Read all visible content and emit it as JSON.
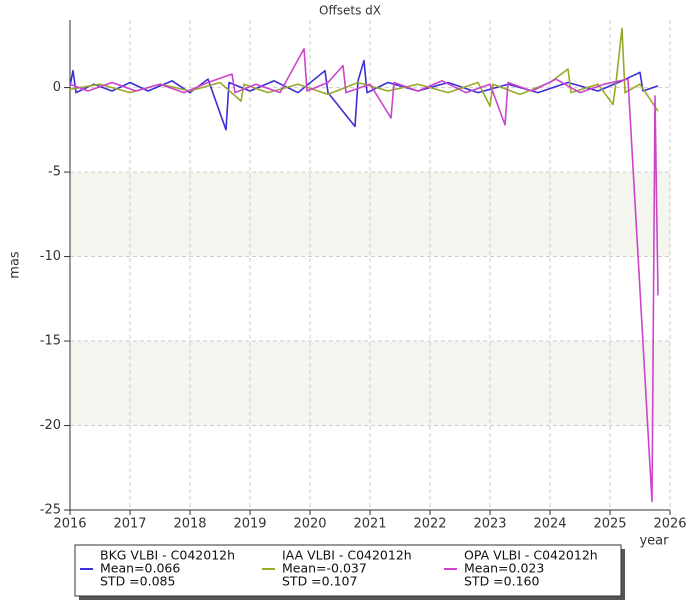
{
  "chart_data": {
    "type": "line",
    "title": "Offsets dX",
    "y_label": "mas",
    "x_label": "year",
    "xlim": [
      2016,
      2026
    ],
    "xticks": [
      2016,
      2017,
      2018,
      2019,
      2020,
      2021,
      2022,
      2023,
      2024,
      2025,
      2026
    ],
    "ylim": [
      -25,
      4
    ],
    "yticks": [
      0,
      -5,
      -10,
      -15,
      -20,
      -25
    ],
    "grid": true,
    "bands": [
      [
        -10,
        -5
      ],
      [
        -20,
        -15
      ]
    ],
    "band_color": "#f5f5f0",
    "series": [
      {
        "name": "BKG VLBI - C042012h",
        "color": "#3a2fd6",
        "stats": [
          "Mean=0.066",
          "STD =0.085"
        ],
        "x": [
          2016.0,
          2016.05,
          2016.1,
          2016.4,
          2016.7,
          2017.0,
          2017.3,
          2017.7,
          2018.0,
          2018.3,
          2018.6,
          2018.65,
          2019.0,
          2019.4,
          2019.8,
          2020.25,
          2020.3,
          2020.75,
          2020.8,
          2020.9,
          2020.95,
          2021.3,
          2021.8,
          2022.3,
          2022.8,
          2023.3,
          2023.8,
          2024.3,
          2024.8,
          2025.2,
          2025.5,
          2025.55,
          2025.8
        ],
        "values": [
          0.1,
          1.0,
          -0.3,
          0.2,
          -0.2,
          0.3,
          -0.2,
          0.4,
          -0.3,
          0.5,
          -2.5,
          0.3,
          -0.2,
          0.4,
          -0.3,
          1.0,
          -0.3,
          -2.3,
          0.4,
          1.6,
          -0.3,
          0.3,
          -0.2,
          0.3,
          -0.3,
          0.2,
          -0.3,
          0.3,
          -0.2,
          0.4,
          0.9,
          -0.2,
          0.1
        ]
      },
      {
        "name": "IAA VLBI - C042012h",
        "color": "#9aa82a",
        "stats": [
          "Mean=-0.037",
          "STD =0.107"
        ],
        "x": [
          2016.0,
          2016.5,
          2017.0,
          2017.5,
          2018.0,
          2018.5,
          2018.85,
          2018.9,
          2019.3,
          2019.8,
          2020.3,
          2020.8,
          2021.3,
          2021.8,
          2022.3,
          2022.8,
          2023.0,
          2023.05,
          2023.5,
          2024.0,
          2024.3,
          2024.35,
          2024.8,
          2025.05,
          2025.1,
          2025.2,
          2025.25,
          2025.5,
          2025.8
        ],
        "values": [
          -0.1,
          0.2,
          -0.3,
          0.2,
          -0.2,
          0.3,
          -0.8,
          0.2,
          -0.3,
          0.2,
          -0.4,
          0.3,
          -0.2,
          0.2,
          -0.3,
          0.3,
          -1.1,
          0.2,
          -0.4,
          0.3,
          1.1,
          -0.3,
          0.2,
          -1.0,
          0.3,
          3.5,
          -0.3,
          0.2,
          -1.4
        ]
      },
      {
        "name": "OPA VLBI - C042012h",
        "color": "#cc44cc",
        "stats": [
          "Mean=0.023",
          "STD =0.160"
        ],
        "x": [
          2016.0,
          2016.3,
          2016.7,
          2017.1,
          2017.5,
          2017.9,
          2018.3,
          2018.7,
          2018.75,
          2019.1,
          2019.5,
          2019.9,
          2019.95,
          2020.3,
          2020.55,
          2020.6,
          2021.0,
          2021.35,
          2021.4,
          2021.8,
          2022.2,
          2022.6,
          2023.0,
          2023.25,
          2023.3,
          2023.7,
          2024.1,
          2024.5,
          2024.9,
          2025.3,
          2025.7,
          2025.75,
          2025.8
        ],
        "values": [
          0.2,
          -0.2,
          0.3,
          -0.2,
          0.2,
          -0.3,
          0.3,
          0.8,
          -0.3,
          0.2,
          -0.3,
          2.3,
          -0.2,
          0.3,
          1.3,
          -0.3,
          0.2,
          -1.8,
          0.3,
          -0.2,
          0.4,
          -0.3,
          0.2,
          -2.2,
          0.3,
          -0.2,
          0.5,
          -0.3,
          0.2,
          0.5,
          -24.5,
          -0.5,
          -12.3
        ]
      }
    ]
  }
}
